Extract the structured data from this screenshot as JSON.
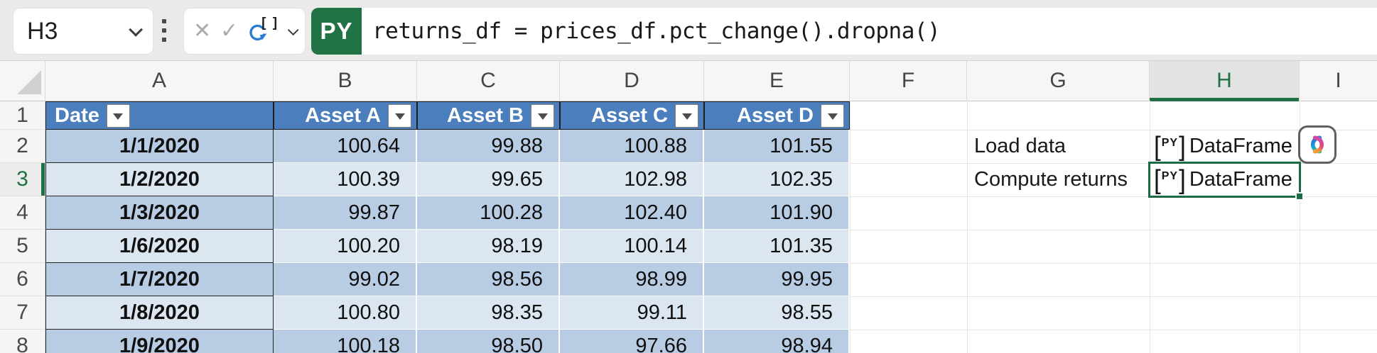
{
  "formula_bar": {
    "name_box_value": "H3",
    "cancel_icon": "✕",
    "enter_icon": "✓",
    "python_insert_icon_brackets": "[ ]",
    "mode_badge": "PY",
    "formula": "returns_df = prices_df.pct_change().dropna()"
  },
  "grid": {
    "column_letters": [
      "A",
      "B",
      "C",
      "D",
      "E",
      "F",
      "G",
      "H",
      "I"
    ],
    "row_numbers": [
      "1",
      "2",
      "3",
      "4",
      "5",
      "6",
      "7",
      "8"
    ],
    "active_cell": "H3",
    "selected_column": "H",
    "selected_row": "3"
  },
  "table": {
    "headers": [
      "Date",
      "Asset A",
      "Asset B",
      "Asset C",
      "Asset D"
    ],
    "rows": [
      [
        "1/1/2020",
        "100.64",
        "99.88",
        "100.88",
        "101.55"
      ],
      [
        "1/2/2020",
        "100.39",
        "99.65",
        "102.98",
        "102.35"
      ],
      [
        "1/3/2020",
        "99.87",
        "100.28",
        "102.40",
        "101.90"
      ],
      [
        "1/6/2020",
        "100.20",
        "98.19",
        "100.14",
        "101.35"
      ],
      [
        "1/7/2020",
        "99.02",
        "98.56",
        "98.99",
        "99.95"
      ],
      [
        "1/8/2020",
        "100.80",
        "98.35",
        "99.11",
        "98.55"
      ],
      [
        "1/9/2020",
        "100.18",
        "98.50",
        "97.66",
        "98.94"
      ]
    ]
  },
  "annotations": {
    "g2_label": "Load data",
    "g3_label": "Compute returns",
    "py_object_open": "[",
    "py_object_tag": "PY",
    "py_object_close": "]",
    "h2_value": "DataFrame",
    "h3_value": "DataFrame"
  },
  "icons": {
    "copilot": "copilot-logo",
    "python_refresh": "refresh-arrow-with-brackets",
    "filter": "dropdown-triangle",
    "select_all": "corner-triangle"
  },
  "colors": {
    "excel_green": "#217346",
    "selection_green": "#1c6b43",
    "table_header_blue": "#4a7ebd",
    "band_dark": "#b8cce4",
    "band_light": "#dce6f1",
    "python_arrow_blue": "#2b7cd3",
    "topbar_gray": "#ebeae9"
  }
}
